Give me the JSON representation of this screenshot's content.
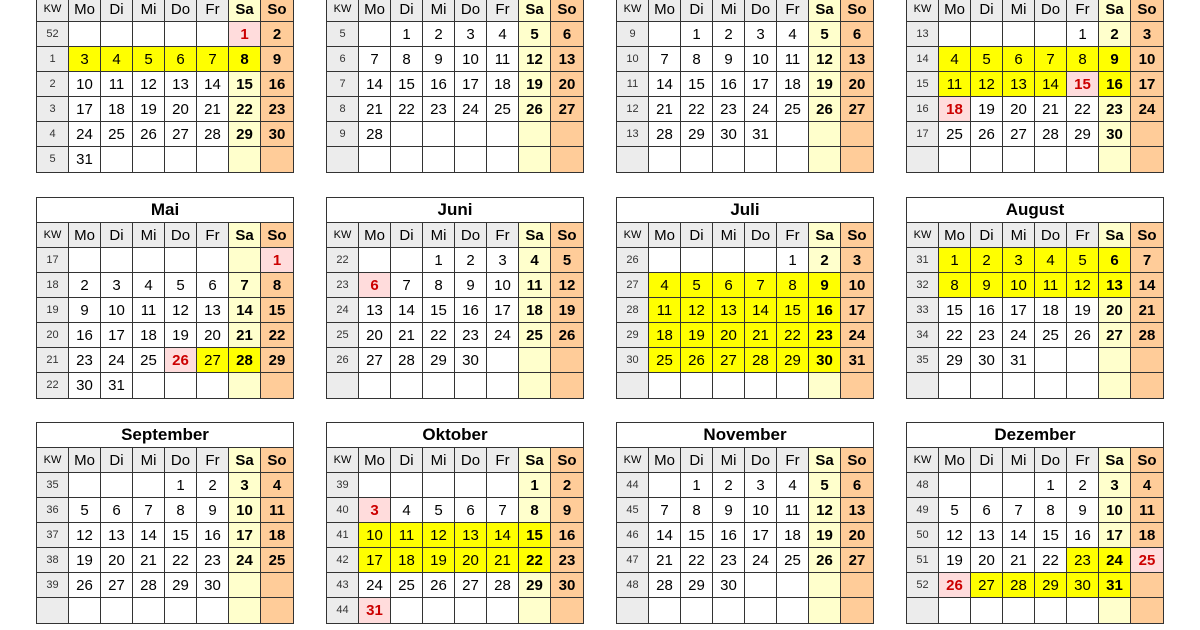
{
  "header": {
    "kw": "KW",
    "days": [
      "Mo",
      "Di",
      "Mi",
      "Do",
      "Fr",
      "Sa",
      "So"
    ]
  },
  "colors": {
    "school_holiday": "#ffff00",
    "public_holiday_bg": "#ffdcdc",
    "public_holiday_text": "#cc0000",
    "saturday": "#ffffcc",
    "sunday": "#ffcc99",
    "header": "#ececec"
  },
  "months": [
    {
      "name": "",
      "weeks": [
        [
          52,
          null,
          null,
          null,
          null,
          null,
          1,
          2
        ],
        [
          1,
          3,
          4,
          5,
          6,
          7,
          8,
          9
        ],
        [
          2,
          10,
          11,
          12,
          13,
          14,
          15,
          16
        ],
        [
          3,
          17,
          18,
          19,
          20,
          21,
          22,
          23
        ],
        [
          4,
          24,
          25,
          26,
          27,
          28,
          29,
          30
        ],
        [
          5,
          31,
          null,
          null,
          null,
          null,
          null,
          null
        ]
      ],
      "holidays": [
        1
      ],
      "school": [
        3,
        4,
        5,
        6,
        7,
        8
      ]
    },
    {
      "name": "",
      "weeks": [
        [
          5,
          null,
          1,
          2,
          3,
          4,
          5,
          6
        ],
        [
          6,
          7,
          8,
          9,
          10,
          11,
          12,
          13
        ],
        [
          7,
          14,
          15,
          16,
          17,
          18,
          19,
          20
        ],
        [
          8,
          21,
          22,
          23,
          24,
          25,
          26,
          27
        ],
        [
          9,
          28,
          null,
          null,
          null,
          null,
          null,
          null
        ],
        [
          null,
          null,
          null,
          null,
          null,
          null,
          null,
          null
        ]
      ],
      "holidays": [],
      "school": []
    },
    {
      "name": "",
      "weeks": [
        [
          9,
          null,
          1,
          2,
          3,
          4,
          5,
          6
        ],
        [
          10,
          7,
          8,
          9,
          10,
          11,
          12,
          13
        ],
        [
          11,
          14,
          15,
          16,
          17,
          18,
          19,
          20
        ],
        [
          12,
          21,
          22,
          23,
          24,
          25,
          26,
          27
        ],
        [
          13,
          28,
          29,
          30,
          31,
          null,
          null,
          null
        ],
        [
          null,
          null,
          null,
          null,
          null,
          null,
          null,
          null
        ]
      ],
      "holidays": [],
      "school": []
    },
    {
      "name": "",
      "weeks": [
        [
          13,
          null,
          null,
          null,
          null,
          1,
          2,
          3
        ],
        [
          14,
          4,
          5,
          6,
          7,
          8,
          9,
          10
        ],
        [
          15,
          11,
          12,
          13,
          14,
          15,
          16,
          17
        ],
        [
          16,
          18,
          19,
          20,
          21,
          22,
          23,
          24
        ],
        [
          17,
          25,
          26,
          27,
          28,
          29,
          30,
          null
        ],
        [
          null,
          null,
          null,
          null,
          null,
          null,
          null,
          null
        ]
      ],
      "holidays": [
        15,
        18
      ],
      "school": [
        4,
        5,
        6,
        7,
        8,
        9,
        11,
        12,
        13,
        14,
        16
      ]
    },
    {
      "name": "Mai",
      "weeks": [
        [
          17,
          null,
          null,
          null,
          null,
          null,
          null,
          1
        ],
        [
          18,
          2,
          3,
          4,
          5,
          6,
          7,
          8
        ],
        [
          19,
          9,
          10,
          11,
          12,
          13,
          14,
          15
        ],
        [
          20,
          16,
          17,
          18,
          19,
          20,
          21,
          22
        ],
        [
          21,
          23,
          24,
          25,
          26,
          27,
          28,
          29
        ],
        [
          22,
          30,
          31,
          null,
          null,
          null,
          null,
          null
        ]
      ],
      "holidays": [
        1,
        26
      ],
      "school": [
        27,
        28
      ]
    },
    {
      "name": "Juni",
      "weeks": [
        [
          22,
          null,
          null,
          1,
          2,
          3,
          4,
          5
        ],
        [
          23,
          6,
          7,
          8,
          9,
          10,
          11,
          12
        ],
        [
          24,
          13,
          14,
          15,
          16,
          17,
          18,
          19
        ],
        [
          25,
          20,
          21,
          22,
          23,
          24,
          25,
          26
        ],
        [
          26,
          27,
          28,
          29,
          30,
          null,
          null,
          null
        ],
        [
          null,
          null,
          null,
          null,
          null,
          null,
          null,
          null
        ]
      ],
      "holidays": [
        6
      ],
      "school": []
    },
    {
      "name": "Juli",
      "weeks": [
        [
          26,
          null,
          null,
          null,
          null,
          1,
          2,
          3
        ],
        [
          27,
          4,
          5,
          6,
          7,
          8,
          9,
          10
        ],
        [
          28,
          11,
          12,
          13,
          14,
          15,
          16,
          17
        ],
        [
          29,
          18,
          19,
          20,
          21,
          22,
          23,
          24
        ],
        [
          30,
          25,
          26,
          27,
          28,
          29,
          30,
          31
        ],
        [
          null,
          null,
          null,
          null,
          null,
          null,
          null,
          null
        ]
      ],
      "holidays": [],
      "school": [
        4,
        5,
        6,
        7,
        8,
        9,
        11,
        12,
        13,
        14,
        15,
        16,
        18,
        19,
        20,
        21,
        22,
        23,
        25,
        26,
        27,
        28,
        29,
        30
      ]
    },
    {
      "name": "August",
      "weeks": [
        [
          31,
          1,
          2,
          3,
          4,
          5,
          6,
          7
        ],
        [
          32,
          8,
          9,
          10,
          11,
          12,
          13,
          14
        ],
        [
          33,
          15,
          16,
          17,
          18,
          19,
          20,
          21
        ],
        [
          34,
          22,
          23,
          24,
          25,
          26,
          27,
          28
        ],
        [
          35,
          29,
          30,
          31,
          null,
          null,
          null,
          null
        ],
        [
          null,
          null,
          null,
          null,
          null,
          null,
          null,
          null
        ]
      ],
      "holidays": [],
      "school": [
        1,
        2,
        3,
        4,
        5,
        6,
        8,
        9,
        10,
        11,
        12,
        13
      ]
    },
    {
      "name": "September",
      "weeks": [
        [
          35,
          null,
          null,
          null,
          1,
          2,
          3,
          4
        ],
        [
          36,
          5,
          6,
          7,
          8,
          9,
          10,
          11
        ],
        [
          37,
          12,
          13,
          14,
          15,
          16,
          17,
          18
        ],
        [
          38,
          19,
          20,
          21,
          22,
          23,
          24,
          25
        ],
        [
          39,
          26,
          27,
          28,
          29,
          30,
          null,
          null
        ],
        [
          null,
          null,
          null,
          null,
          null,
          null,
          null,
          null
        ]
      ],
      "holidays": [],
      "school": []
    },
    {
      "name": "Oktober",
      "weeks": [
        [
          39,
          null,
          null,
          null,
          null,
          null,
          1,
          2
        ],
        [
          40,
          3,
          4,
          5,
          6,
          7,
          8,
          9
        ],
        [
          41,
          10,
          11,
          12,
          13,
          14,
          15,
          16
        ],
        [
          42,
          17,
          18,
          19,
          20,
          21,
          22,
          23
        ],
        [
          43,
          24,
          25,
          26,
          27,
          28,
          29,
          30
        ],
        [
          44,
          31,
          null,
          null,
          null,
          null,
          null,
          null
        ]
      ],
      "holidays": [
        3,
        31
      ],
      "school": [
        10,
        11,
        12,
        13,
        14,
        15,
        17,
        18,
        19,
        20,
        21,
        22
      ]
    },
    {
      "name": "November",
      "weeks": [
        [
          44,
          null,
          1,
          2,
          3,
          4,
          5,
          6
        ],
        [
          45,
          7,
          8,
          9,
          10,
          11,
          12,
          13
        ],
        [
          46,
          14,
          15,
          16,
          17,
          18,
          19,
          20
        ],
        [
          47,
          21,
          22,
          23,
          24,
          25,
          26,
          27
        ],
        [
          48,
          28,
          29,
          30,
          null,
          null,
          null,
          null
        ],
        [
          null,
          null,
          null,
          null,
          null,
          null,
          null,
          null
        ]
      ],
      "holidays": [],
      "school": []
    },
    {
      "name": "Dezember",
      "weeks": [
        [
          48,
          null,
          null,
          null,
          1,
          2,
          3,
          4
        ],
        [
          49,
          5,
          6,
          7,
          8,
          9,
          10,
          11
        ],
        [
          50,
          12,
          13,
          14,
          15,
          16,
          17,
          18
        ],
        [
          51,
          19,
          20,
          21,
          22,
          23,
          24,
          25
        ],
        [
          52,
          26,
          27,
          28,
          29,
          30,
          31,
          null
        ],
        [
          null,
          null,
          null,
          null,
          null,
          null,
          null,
          null
        ]
      ],
      "holidays": [
        25,
        26
      ],
      "school": [
        23,
        24,
        27,
        28,
        29,
        30,
        31
      ]
    }
  ]
}
